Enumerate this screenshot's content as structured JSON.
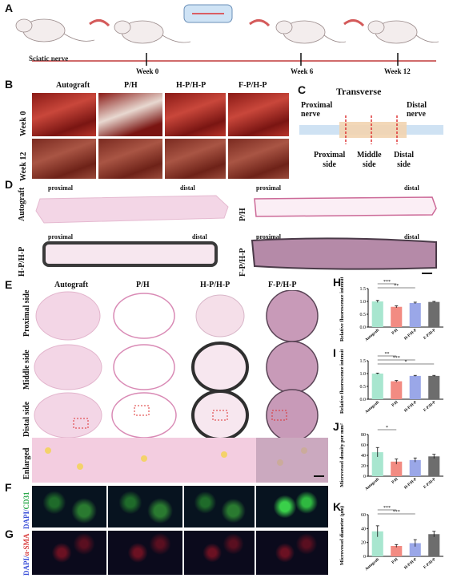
{
  "panels": {
    "A": "A",
    "B": "B",
    "C": "C",
    "D": "D",
    "E": "E",
    "F": "F",
    "G": "G",
    "H": "H",
    "I": "I",
    "J": "J",
    "K": "K"
  },
  "panelA": {
    "nerve_label": "Sciatic nerve",
    "weeks": [
      "Week 0",
      "Week 6",
      "Week 12"
    ]
  },
  "groups": [
    "Autograft",
    "P/H",
    "H-P/H-P",
    "F-P/H-P"
  ],
  "panelB": {
    "rows": [
      "Week 0",
      "Week 12"
    ]
  },
  "panelC": {
    "title": "Transverse",
    "proximal_nerve": "Proximal\nnerve",
    "distal_nerve": "Distal\nnerve",
    "sides": [
      "Proximal\nside",
      "Middle\nside",
      "Distal\nside"
    ]
  },
  "panelD": {
    "proximal": "proximal",
    "distal": "distal"
  },
  "panelE": {
    "rows": [
      "Proximal side",
      "Middle side",
      "Distal side",
      "Enlarged"
    ]
  },
  "panelF": {
    "stain_dapi": "DAPI/",
    "stain_marker": "CD31"
  },
  "panelG": {
    "stain_dapi": "DAPI/",
    "stain_marker": "α-SMA"
  },
  "chart_data": [
    {
      "id": "H",
      "type": "bar",
      "categories": [
        "Autograft",
        "P/H",
        "H-P/H-P",
        "F-P/H-P"
      ],
      "values": [
        1.0,
        0.79,
        0.94,
        0.98
      ],
      "errors": [
        0.04,
        0.04,
        0.03,
        0.02
      ],
      "ylabel": "Relative fluorescence intensity",
      "ylim": [
        0,
        1.5
      ],
      "yticks": [
        0.0,
        0.5,
        1.0,
        1.5
      ],
      "significance": [
        "***",
        "**"
      ],
      "colors": [
        "#a8e6cf",
        "#f28b82",
        "#9aa7e8",
        "#6d6d6d"
      ]
    },
    {
      "id": "I",
      "type": "bar",
      "categories": [
        "Autograft",
        "P/H",
        "H-P/H-P",
        "F-P/H-P"
      ],
      "values": [
        1.0,
        0.7,
        0.91,
        0.91
      ],
      "errors": [
        0.02,
        0.03,
        0.02,
        0.02
      ],
      "ylabel": "Relative fluorescence intensity",
      "ylim": [
        0,
        1.5
      ],
      "yticks": [
        0.0,
        0.5,
        1.0,
        1.5
      ],
      "significance": [
        "**",
        "***",
        "*"
      ],
      "colors": [
        "#a8e6cf",
        "#f28b82",
        "#9aa7e8",
        "#6d6d6d"
      ]
    },
    {
      "id": "J",
      "type": "bar",
      "categories": [
        "Autograft",
        "P/H",
        "H-P/H-P",
        "F-P/H-P"
      ],
      "values": [
        46,
        28,
        31,
        38
      ],
      "errors": [
        9,
        5,
        4,
        4
      ],
      "ylabel": "Microvessel density per mm²",
      "ylim": [
        0,
        80
      ],
      "yticks": [
        0,
        20,
        40,
        60,
        80
      ],
      "significance": [
        "*"
      ],
      "colors": [
        "#a8e6cf",
        "#f28b82",
        "#9aa7e8",
        "#6d6d6d"
      ]
    },
    {
      "id": "K",
      "type": "bar",
      "categories": [
        "Autograft",
        "P/H",
        "H-P/H-P",
        "F-P/H-P"
      ],
      "values": [
        36,
        15,
        19,
        32
      ],
      "errors": [
        8,
        2,
        5,
        4
      ],
      "ylabel": "Microvessel diameter (μm)",
      "ylim": [
        0,
        60
      ],
      "yticks": [
        0,
        20,
        40,
        60
      ],
      "significance": [
        "***",
        "***"
      ],
      "colors": [
        "#a8e6cf",
        "#f28b82",
        "#9aa7e8",
        "#6d6d6d"
      ]
    }
  ]
}
